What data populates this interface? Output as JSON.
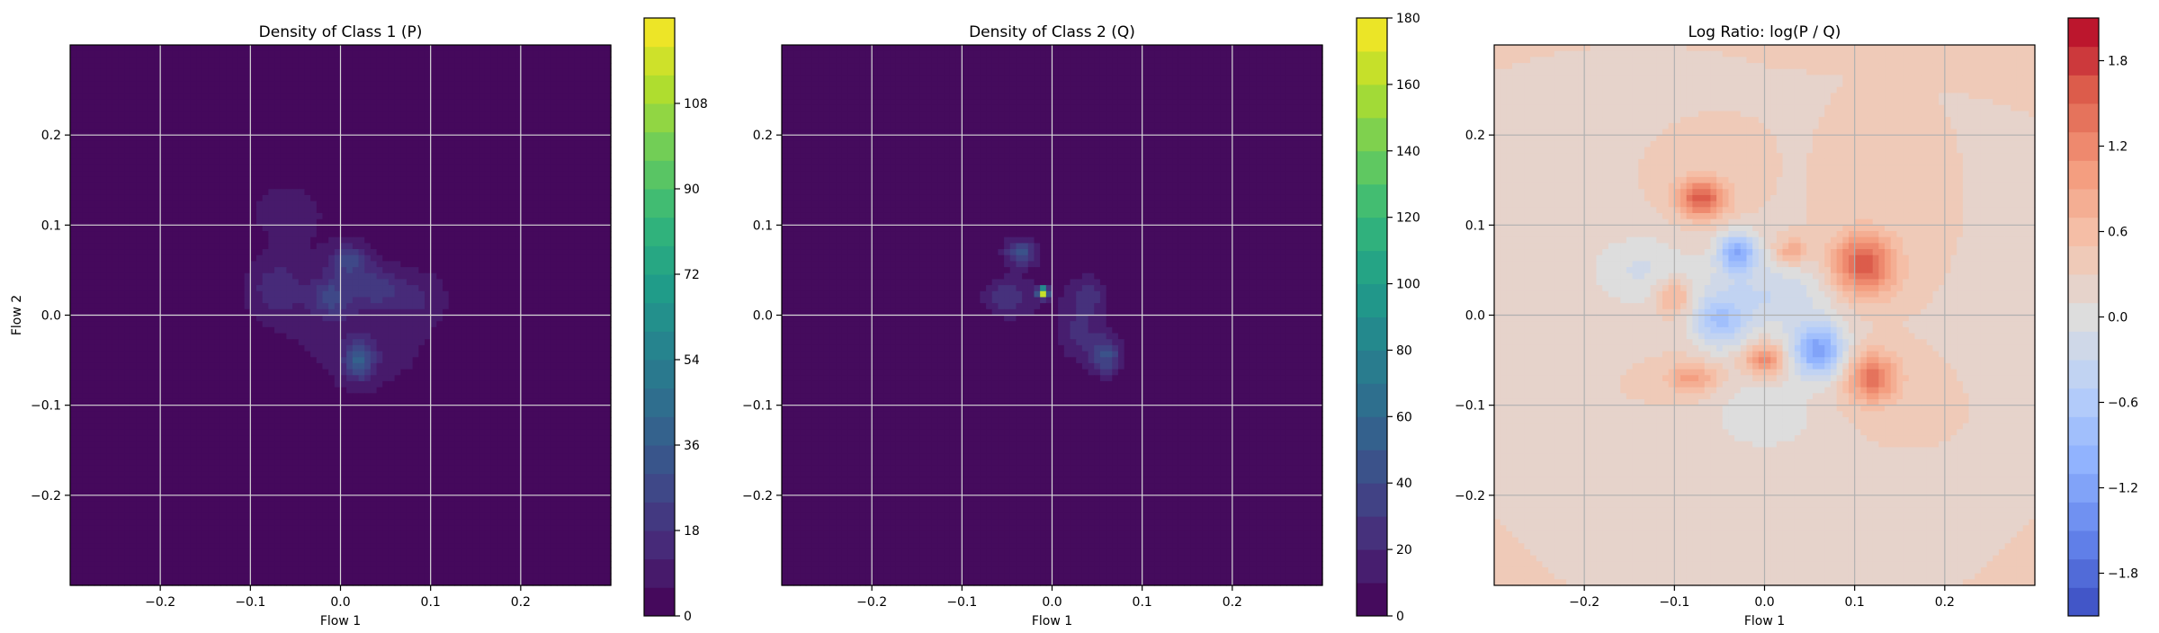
{
  "chart_data": [
    {
      "type": "heatmap",
      "title": "Density of Class 1 (P)",
      "xlabel": "Flow 1",
      "ylabel": "Flow 2",
      "xlim": [
        -0.3,
        0.3
      ],
      "ylim": [
        -0.3,
        0.3
      ],
      "xticks": [
        "-0.2",
        "-0.1",
        "0.0",
        "0.1",
        "0.2"
      ],
      "yticks": [
        "-0.2",
        "-0.1",
        "0.0",
        "0.1",
        "0.2"
      ],
      "grid": true,
      "colormap": "viridis",
      "colorbar": {
        "min": 0,
        "max": 126,
        "levels": 21,
        "ticks": [
          "0",
          "18",
          "36",
          "54",
          "72",
          "90",
          "108"
        ],
        "tick_values": [
          0,
          18,
          36,
          54,
          72,
          90,
          108
        ]
      },
      "blobs": [
        {
          "x": -0.03,
          "y": 0.02,
          "sx": 0.09,
          "sy": 0.075,
          "v": 6
        },
        {
          "x": 0.05,
          "y": -0.04,
          "sx": 0.06,
          "sy": 0.05,
          "v": 5
        },
        {
          "x": -0.06,
          "y": 0.12,
          "sx": 0.03,
          "sy": 0.025,
          "v": 7
        },
        {
          "x": 0.02,
          "y": -0.05,
          "sx": 0.012,
          "sy": 0.015,
          "v": 30
        },
        {
          "x": 0.01,
          "y": 0.06,
          "sx": 0.015,
          "sy": 0.012,
          "v": 22
        },
        {
          "x": -0.01,
          "y": 0.02,
          "sx": 0.015,
          "sy": 0.015,
          "v": 20
        },
        {
          "x": 0.04,
          "y": 0.03,
          "sx": 0.02,
          "sy": 0.015,
          "v": 16
        },
        {
          "x": -0.07,
          "y": 0.03,
          "sx": 0.02,
          "sy": 0.02,
          "v": 12
        },
        {
          "x": 0.09,
          "y": 0.02,
          "sx": 0.02,
          "sy": 0.02,
          "v": 8
        }
      ]
    },
    {
      "type": "heatmap",
      "title": "Density of Class 2 (Q)",
      "xlabel": "Flow 1",
      "ylabel": "",
      "xlim": [
        -0.3,
        0.3
      ],
      "ylim": [
        -0.3,
        0.3
      ],
      "xticks": [
        "-0.2",
        "-0.1",
        "0.0",
        "0.1",
        "0.2"
      ],
      "yticks": [
        "-0.2",
        "-0.1",
        "0.0",
        "0.1",
        "0.2"
      ],
      "grid": true,
      "colormap": "viridis",
      "colorbar": {
        "min": 0,
        "max": 180,
        "levels": 18,
        "ticks": [
          "0",
          "20",
          "40",
          "60",
          "80",
          "100",
          "120",
          "140",
          "160",
          "180"
        ],
        "tick_values": [
          0,
          20,
          40,
          60,
          80,
          100,
          120,
          140,
          160,
          180
        ]
      },
      "blobs": [
        {
          "x": 0.0,
          "y": 0.02,
          "sx": 0.055,
          "sy": 0.075,
          "v": 6
        },
        {
          "x": -0.01,
          "y": 0.025,
          "sx": 0.004,
          "sy": 0.004,
          "v": 170
        },
        {
          "x": -0.035,
          "y": 0.07,
          "sx": 0.012,
          "sy": 0.01,
          "v": 40
        },
        {
          "x": 0.06,
          "y": -0.045,
          "sx": 0.012,
          "sy": 0.015,
          "v": 40
        },
        {
          "x": -0.05,
          "y": 0.02,
          "sx": 0.02,
          "sy": 0.015,
          "v": 22
        },
        {
          "x": 0.04,
          "y": 0.02,
          "sx": 0.015,
          "sy": 0.015,
          "v": 20
        },
        {
          "x": 0.03,
          "y": -0.02,
          "sx": 0.015,
          "sy": 0.02,
          "v": 18
        }
      ]
    },
    {
      "type": "heatmap",
      "title": "Log Ratio: log(P / Q)",
      "xlabel": "Flow 1",
      "ylabel": "",
      "xlim": [
        -0.3,
        0.3
      ],
      "ylim": [
        -0.3,
        0.3
      ],
      "xticks": [
        "-0.2",
        "-0.1",
        "0.0",
        "0.1",
        "0.2"
      ],
      "yticks": [
        "-0.2",
        "-0.1",
        "0.0",
        "0.1",
        "0.2"
      ],
      "grid": true,
      "colormap": "coolwarm",
      "colorbar": {
        "min": -2.1,
        "max": 2.1,
        "levels": 21,
        "ticks": [
          "-1.8",
          "-1.2",
          "-0.6",
          "0.0",
          "0.6",
          "1.2",
          "1.8"
        ],
        "tick_values": [
          -1.8,
          -1.2,
          -0.6,
          0.0,
          0.6,
          1.2,
          1.8
        ]
      },
      "background": 0.3,
      "blobs": [
        {
          "x": 0.11,
          "y": 0.055,
          "sx": 0.025,
          "sy": 0.025,
          "v": 1.4
        },
        {
          "x": -0.07,
          "y": 0.13,
          "sx": 0.02,
          "sy": 0.015,
          "v": 1.3
        },
        {
          "x": 0.12,
          "y": -0.07,
          "sx": 0.02,
          "sy": 0.02,
          "v": 1.1
        },
        {
          "x": 0.0,
          "y": -0.05,
          "sx": 0.015,
          "sy": 0.012,
          "v": 1.0
        },
        {
          "x": -0.08,
          "y": -0.07,
          "sx": 0.02,
          "sy": 0.012,
          "v": 0.7
        },
        {
          "x": -0.1,
          "y": 0.02,
          "sx": 0.015,
          "sy": 0.015,
          "v": 0.7
        },
        {
          "x": 0.03,
          "y": 0.07,
          "sx": 0.012,
          "sy": 0.01,
          "v": 0.7
        },
        {
          "x": -0.03,
          "y": 0.07,
          "sx": 0.015,
          "sy": 0.015,
          "v": -1.3
        },
        {
          "x": 0.06,
          "y": -0.04,
          "sx": 0.02,
          "sy": 0.02,
          "v": -1.5
        },
        {
          "x": -0.05,
          "y": -0.01,
          "sx": 0.02,
          "sy": 0.02,
          "v": -0.8
        },
        {
          "x": 0.0,
          "y": 0.02,
          "sx": 0.06,
          "sy": 0.03,
          "v": -0.6
        },
        {
          "x": -0.14,
          "y": 0.05,
          "sx": 0.04,
          "sy": 0.03,
          "v": -0.4
        },
        {
          "x": 0.0,
          "y": -0.11,
          "sx": 0.04,
          "sy": 0.03,
          "v": -0.4
        }
      ]
    }
  ]
}
